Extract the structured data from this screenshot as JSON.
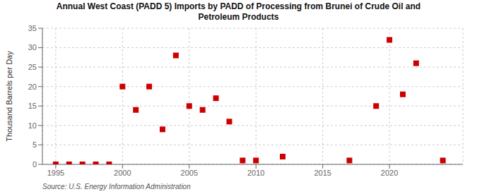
{
  "chart_data": {
    "type": "scatter",
    "title": "Annual West Coast (PADD 5) Imports by PADD of Processing from Brunei of Crude Oil and\nPetroleum Products",
    "ylabel": "Thousand Barrels per Day",
    "source": "Source: U.S. Energy Information Administration",
    "x": [
      1995,
      1996,
      1997,
      1998,
      1999,
      2000,
      2001,
      2002,
      2003,
      2004,
      2005,
      2006,
      2007,
      2008,
      2009,
      2010,
      2012,
      2017,
      2019,
      2020,
      2021,
      2022,
      2024
    ],
    "values": [
      0,
      0,
      0,
      0,
      0,
      20,
      14,
      20,
      9,
      28,
      15,
      14,
      17,
      11,
      1,
      1,
      2,
      1,
      15,
      32,
      18,
      26,
      1
    ],
    "color": "#cc0000",
    "marker": "square",
    "xlim": [
      1994.0,
      2025.5
    ],
    "ylim": [
      0,
      35
    ],
    "xticks": [
      1995,
      2000,
      2005,
      2010,
      2015,
      2020
    ],
    "yticks": [
      0,
      5,
      10,
      15,
      20,
      25,
      30,
      35
    ],
    "grid": true
  }
}
